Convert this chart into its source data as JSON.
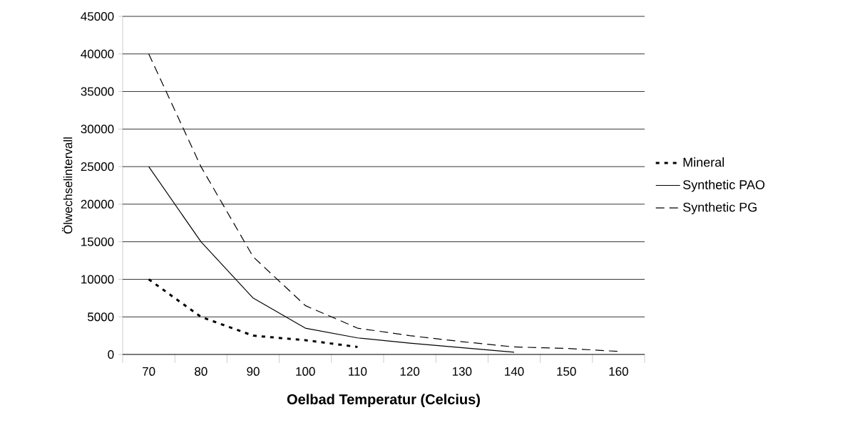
{
  "chart_data": {
    "type": "line",
    "xlabel": "Oelbad Temperatur (Celcius)",
    "ylabel": "Ölwechselintervall",
    "categories": [
      "70",
      "80",
      "90",
      "100",
      "110",
      "120",
      "130",
      "140",
      "150",
      "160"
    ],
    "series": [
      {
        "name": "Mineral",
        "color": "#000000",
        "line_style": "dotted",
        "values": [
          10000,
          5000,
          2500,
          1900,
          1000,
          null,
          null,
          null,
          null,
          null
        ]
      },
      {
        "name": "Synthetic PAO",
        "color": "#000000",
        "line_style": "solid",
        "values": [
          25000,
          15000,
          7500,
          3500,
          2200,
          1500,
          900,
          300,
          null,
          null
        ]
      },
      {
        "name": "Synthetic PG",
        "color": "#000000",
        "line_style": "dashed",
        "values": [
          40000,
          25000,
          13000,
          6500,
          3500,
          2500,
          1700,
          1000,
          800,
          400
        ]
      }
    ],
    "ylim": [
      0,
      45000
    ],
    "yticks": [
      0,
      5000,
      10000,
      15000,
      20000,
      25000,
      30000,
      35000,
      40000,
      45000
    ],
    "grid": "y",
    "legend": "right",
    "marker": "none"
  }
}
